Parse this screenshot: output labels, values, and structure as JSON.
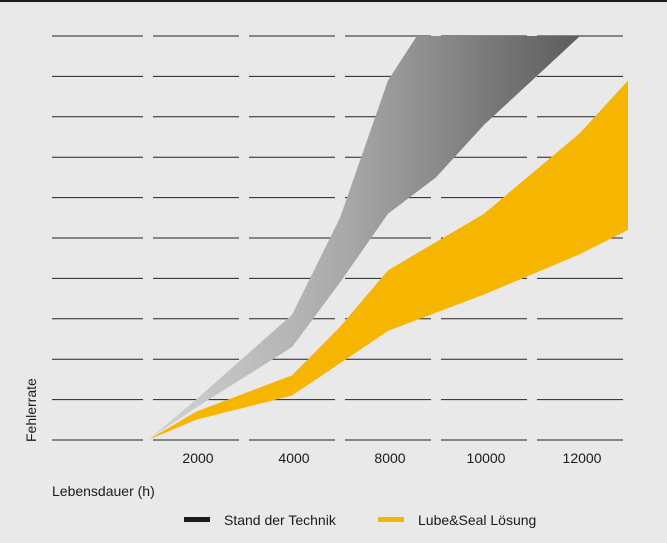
{
  "chart_data": {
    "type": "area",
    "title": "",
    "xlabel": "Lebensdauer (h)",
    "ylabel": "Fehlerrate",
    "x_ticks": [
      2000,
      4000,
      8000,
      10000,
      12000
    ],
    "xlim": [
      0,
      13000
    ],
    "ylim": [
      0,
      10
    ],
    "grid": true,
    "legend_position": "bottom",
    "series": [
      {
        "name": "Stand der Technik",
        "color": "#1a1a1a",
        "fill": "gray-gradient",
        "upper": [
          [
            1000,
            0
          ],
          [
            2000,
            1.0
          ],
          [
            4000,
            3.1
          ],
          [
            6000,
            5.5
          ],
          [
            7000,
            7.2
          ],
          [
            8000,
            8.9
          ],
          [
            8600,
            10
          ]
        ],
        "lower": [
          [
            1000,
            0
          ],
          [
            2000,
            0.8
          ],
          [
            4000,
            2.3
          ],
          [
            6000,
            3.9
          ],
          [
            8000,
            5.6
          ],
          [
            9000,
            6.5
          ],
          [
            10000,
            7.8
          ],
          [
            11000,
            8.9
          ],
          [
            12000,
            10
          ]
        ]
      },
      {
        "name": "Lube&Seal Lösung",
        "color": "#f6b500",
        "fill": "#f6b500",
        "upper": [
          [
            1000,
            0
          ],
          [
            2000,
            0.7
          ],
          [
            4000,
            1.6
          ],
          [
            6000,
            2.8
          ],
          [
            8000,
            4.2
          ],
          [
            10000,
            5.6
          ],
          [
            12000,
            7.6
          ],
          [
            13000,
            8.9
          ]
        ],
        "lower": [
          [
            1000,
            0
          ],
          [
            2000,
            0.5
          ],
          [
            4000,
            1.1
          ],
          [
            6000,
            1.9
          ],
          [
            8000,
            2.7
          ],
          [
            10000,
            3.6
          ],
          [
            12000,
            4.6
          ],
          [
            13000,
            5.2
          ]
        ]
      }
    ]
  }
}
